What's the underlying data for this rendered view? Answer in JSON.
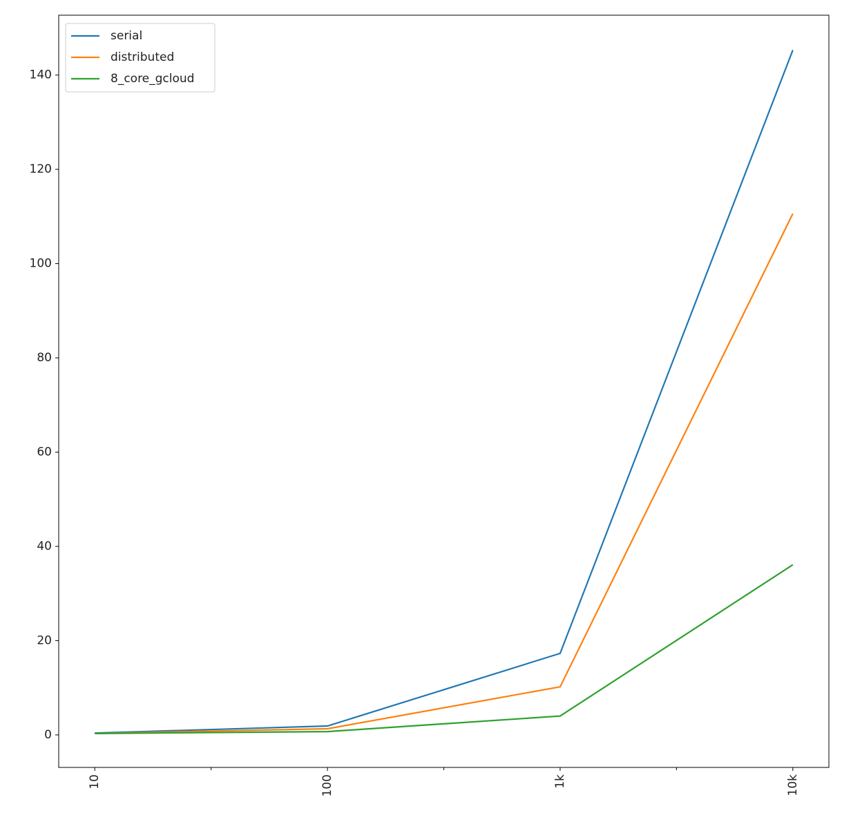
{
  "chart_data": {
    "type": "line",
    "categories": [
      "10",
      "100",
      "1k",
      "10k"
    ],
    "series": [
      {
        "name": "serial",
        "color": "#1f77b4",
        "values": [
          0.4,
          1.9,
          17.3,
          145.3
        ]
      },
      {
        "name": "distributed",
        "color": "#ff7f0e",
        "values": [
          0.3,
          1.3,
          10.2,
          110.6
        ]
      },
      {
        "name": "8_core_gcloud",
        "color": "#2ca02c",
        "values": [
          0.3,
          0.7,
          4.0,
          36.1
        ]
      }
    ],
    "ylim": [
      -6.9,
      152.7
    ],
    "yticks": [
      0,
      20,
      40,
      60,
      80,
      100,
      120,
      140
    ],
    "grid": false,
    "legend": "upper left"
  }
}
